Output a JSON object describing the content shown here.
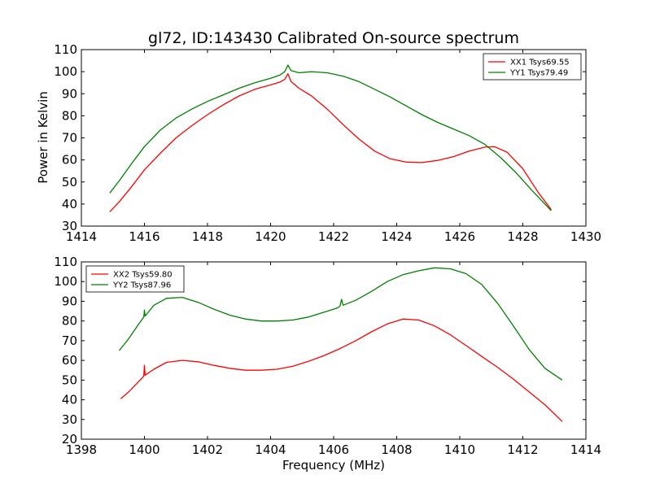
{
  "chart_data": {
    "figure_title": "gl72, ID:143430 Calibrated On-source spectrum",
    "shared_ylabel": "Power in Kelvin",
    "shared_xlabel": "Frequency (MHz)",
    "panels": [
      {
        "type": "line",
        "xlim": [
          1414,
          1430
        ],
        "ylim": [
          30,
          110
        ],
        "xticks": [
          1414,
          1416,
          1418,
          1420,
          1422,
          1424,
          1426,
          1428,
          1430
        ],
        "yticks": [
          30,
          40,
          50,
          60,
          70,
          80,
          90,
          100,
          110
        ],
        "legend_position": "top-right",
        "series": [
          {
            "name": "XX1 Tsys69.55",
            "color": "#ff0000",
            "x": [
              1414.9,
              1415.2,
              1415.6,
              1416.0,
              1416.5,
              1417.0,
              1417.5,
              1418.0,
              1418.5,
              1419.0,
              1419.5,
              1420.0,
              1420.3,
              1420.45,
              1420.55,
              1420.65,
              1420.9,
              1421.3,
              1421.8,
              1422.3,
              1422.8,
              1423.3,
              1423.8,
              1424.3,
              1424.8,
              1425.3,
              1425.8,
              1426.3,
              1426.8,
              1427.1,
              1427.5,
              1428.0,
              1428.5,
              1428.9
            ],
            "y": [
              36.5,
              41,
              48,
              55.5,
              63,
              70,
              75.5,
              80.5,
              85,
              89,
              92,
              94,
              95.3,
              96.5,
              99,
              95.5,
              92.5,
              89,
              83,
              76,
              69.5,
              64,
              60.5,
              59,
              58.8,
              59.8,
              61.5,
              64,
              65.8,
              66,
              63.5,
              56,
              45,
              37.5
            ]
          },
          {
            "name": "YY1 Tsys79.49",
            "color": "#008000",
            "x": [
              1414.9,
              1415.2,
              1415.6,
              1416.0,
              1416.5,
              1417.0,
              1417.5,
              1418.0,
              1418.5,
              1419.0,
              1419.5,
              1420.0,
              1420.3,
              1420.45,
              1420.55,
              1420.65,
              1420.9,
              1421.3,
              1421.8,
              1422.3,
              1422.8,
              1423.3,
              1423.8,
              1424.3,
              1424.8,
              1425.3,
              1425.8,
              1426.3,
              1426.8,
              1427.3,
              1427.8,
              1428.3,
              1428.9
            ],
            "y": [
              45,
              50.5,
              58.5,
              66,
              73.5,
              79,
              83,
              86.5,
              89.5,
              92.5,
              95,
              97,
              98.5,
              100,
              103,
              100.5,
              99.5,
              100,
              99.5,
              98,
              95.5,
              92,
              88.5,
              84.5,
              80.5,
              77,
              74,
              71,
              67,
              61,
              54,
              46,
              37
            ]
          }
        ]
      },
      {
        "type": "line",
        "xlim": [
          1398,
          1414
        ],
        "ylim": [
          20,
          110
        ],
        "xticks": [
          1398,
          1400,
          1402,
          1404,
          1406,
          1408,
          1410,
          1412,
          1414
        ],
        "yticks": [
          20,
          30,
          40,
          50,
          60,
          70,
          80,
          90,
          100,
          110
        ],
        "legend_position": "top-left",
        "series": [
          {
            "name": "XX2 Tsys59.80",
            "color": "#ff0000",
            "x": [
              1399.25,
              1399.5,
              1399.8,
              1399.98,
              1400.0,
              1400.02,
              1400.3,
              1400.7,
              1401.2,
              1401.7,
              1402.2,
              1402.7,
              1403.2,
              1403.7,
              1404.2,
              1404.7,
              1405.2,
              1405.7,
              1406.2,
              1406.7,
              1407.2,
              1407.7,
              1408.2,
              1408.7,
              1409.2,
              1409.7,
              1410.2,
              1410.7,
              1411.2,
              1411.7,
              1412.2,
              1412.7,
              1413.25
            ],
            "y": [
              40.5,
              44,
              49,
              52,
              57.5,
              52.5,
              55.5,
              59,
              60,
              59.3,
              57.5,
              56,
              55,
              55,
              55.5,
              57,
              59.5,
              62.5,
              66,
              70,
              74.5,
              78.5,
              81,
              80.5,
              77.5,
              73,
              67.5,
              62,
              56.5,
              50.5,
              44,
              37.5,
              29
            ]
          },
          {
            "name": "YY2 Tsys87.96",
            "color": "#008000",
            "x": [
              1399.2,
              1399.5,
              1399.8,
              1399.98,
              1400.0,
              1400.02,
              1400.3,
              1400.7,
              1401.2,
              1401.7,
              1402.2,
              1402.7,
              1403.2,
              1403.7,
              1404.2,
              1404.7,
              1405.2,
              1405.7,
              1406.1,
              1406.2,
              1406.25,
              1406.3,
              1406.7,
              1407.2,
              1407.7,
              1408.2,
              1408.7,
              1409.2,
              1409.7,
              1410.2,
              1410.7,
              1411.2,
              1411.7,
              1412.2,
              1412.7,
              1413.25
            ],
            "y": [
              65,
              71,
              78,
              82,
              85.5,
              82.5,
              88,
              91.5,
              92,
              89.5,
              86,
              83,
              81,
              80,
              80,
              80.5,
              82,
              84.5,
              86.5,
              87.5,
              91,
              88,
              90.5,
              95,
              100,
              103.5,
              105.5,
              107,
              106.5,
              104,
              98.5,
              89,
              77.5,
              65.5,
              56,
              50
            ]
          }
        ]
      }
    ]
  }
}
